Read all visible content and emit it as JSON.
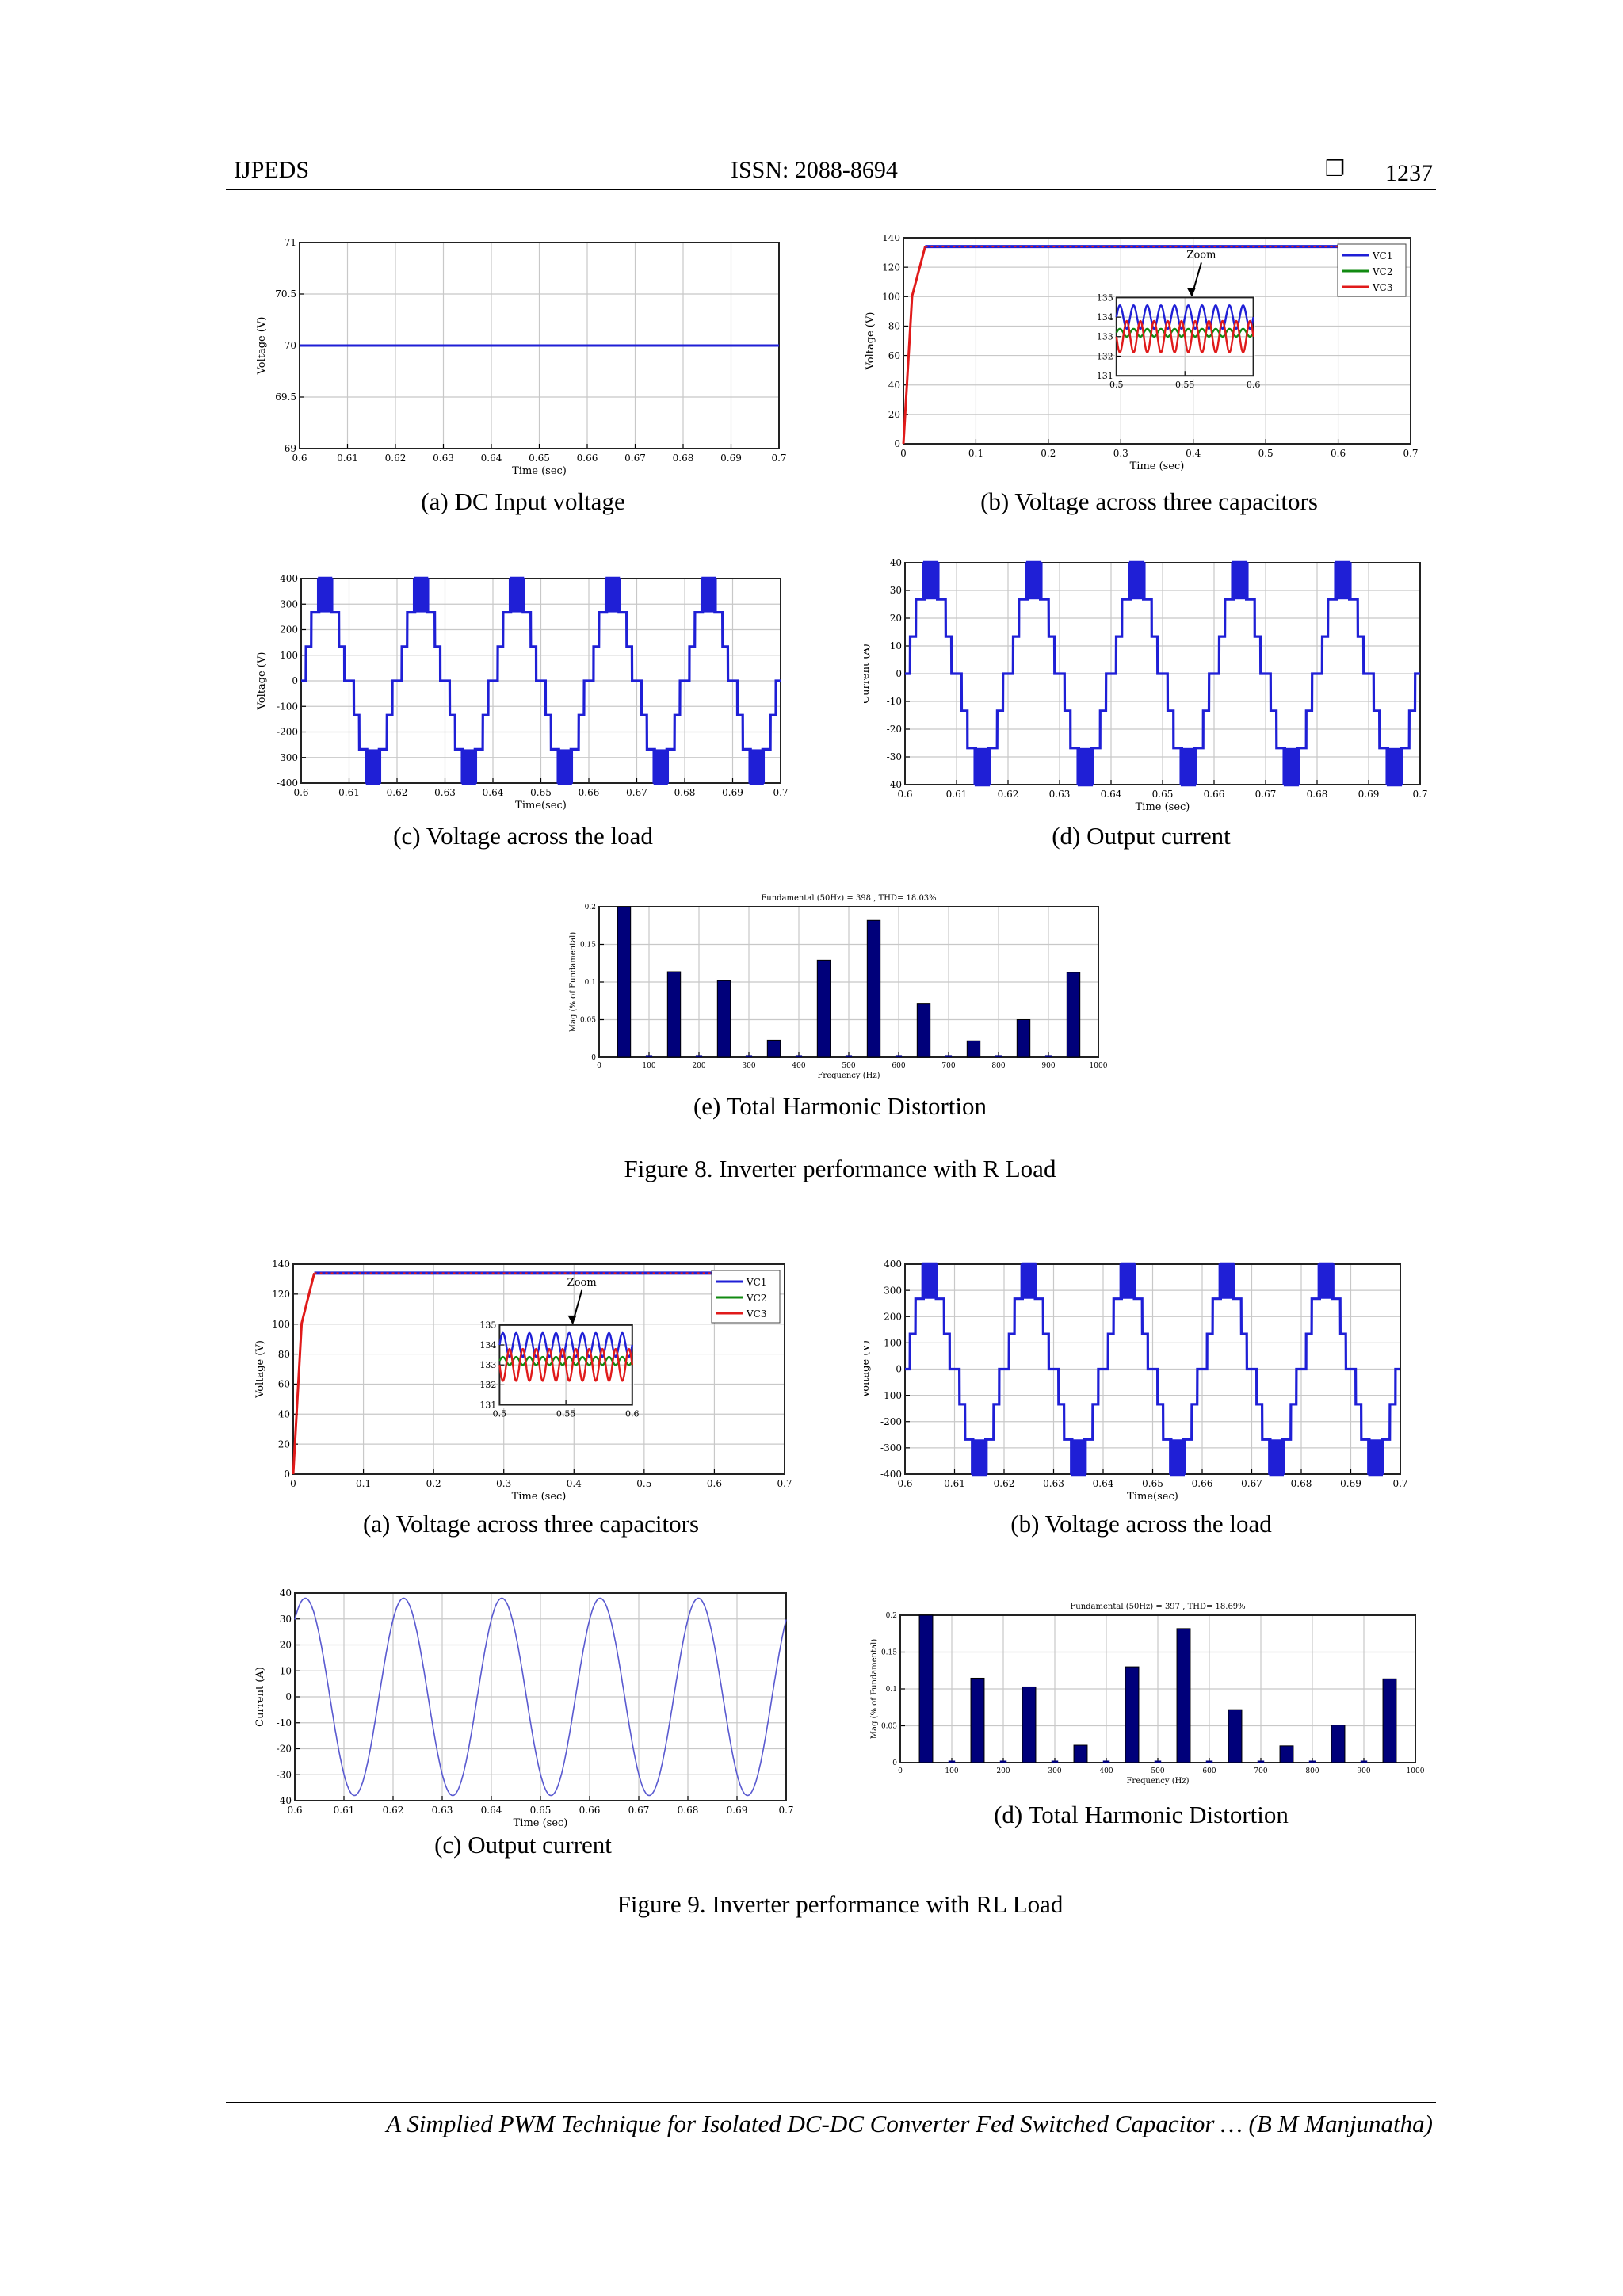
{
  "header": {
    "journal": "IJPEDS",
    "issn": "ISSN: 2088-8694",
    "box_glyph": "❐",
    "page": "1237"
  },
  "footer": {
    "title": "A Simplied PWM Technique for Isolated DC-DC Converter Fed Switched Capacitor … (B M Manjunatha)"
  },
  "figure8": {
    "caption": "Figure 8. Inverter performance with R Load",
    "panels": {
      "a": "(a) DC Input voltage",
      "b": "(b) Voltage across three capacitors",
      "c": "(c) Voltage across the load",
      "d": "(d) Output current",
      "e": "(e) Total Harmonic Distortion"
    }
  },
  "figure9": {
    "caption": "Figure 9. Inverter performance with RL Load",
    "panels": {
      "a": "(a) Voltage across three capacitors",
      "b": "(b) Voltage across the load",
      "c": "(c) Output current",
      "d": "(d) Total Harmonic Distortion"
    }
  },
  "colors": {
    "blue": "#1f1fd6",
    "green": "#118a11",
    "red": "#e01a1a",
    "navy": "#00007a",
    "grid": "#c8c8c8",
    "thin_blue": "#5a5ad0"
  },
  "chart_data": [
    {
      "id": "f8a",
      "type": "line",
      "xlabel": "Time (sec)",
      "ylabel": "Voltage (V)",
      "xlim": [
        0.6,
        0.7
      ],
      "ylim": [
        69,
        71
      ],
      "xticks": [
        "0.6",
        "0.61",
        "0.62",
        "0.63",
        "0.64",
        "0.65",
        "0.66",
        "0.67",
        "0.68",
        "0.69",
        "0.7"
      ],
      "yticks": [
        "69",
        "69.5",
        "70",
        "70.5",
        "71"
      ],
      "series": [
        {
          "x": [
            0.6,
            0.7
          ],
          "y": [
            70,
            70
          ]
        }
      ]
    },
    {
      "id": "f8b",
      "type": "line",
      "xlabel": "Time (sec)",
      "ylabel": "Voltage (V)",
      "xlim": [
        0,
        0.7
      ],
      "ylim": [
        0,
        140
      ],
      "xticks": [
        "0",
        "0.1",
        "0.2",
        "0.3",
        "0.4",
        "0.5",
        "0.6",
        "0.7"
      ],
      "yticks": [
        "0",
        "20",
        "40",
        "60",
        "80",
        "100",
        "120",
        "140"
      ],
      "legend": [
        "VC1",
        "VC2",
        "VC3"
      ],
      "annotation": "Zoom",
      "rise": {
        "t_end": 0.03,
        "steady": 134
      },
      "inset": {
        "xlim": [
          0.5,
          0.6
        ],
        "ylim": [
          131,
          135
        ],
        "xticks": [
          "0.5",
          "0.55",
          "0.6"
        ],
        "yticks": [
          "131",
          "132",
          "133",
          "134",
          "135"
        ],
        "VC1": {
          "mean": 134,
          "ripple": 0.6
        },
        "VC2": {
          "mean": 133.2,
          "ripple": 0.2
        },
        "VC3": {
          "mean": 133,
          "ripple": 0.8
        }
      }
    },
    {
      "id": "f8c",
      "type": "line",
      "xlabel": "Time(sec)",
      "ylabel": "Voltage (V)",
      "xlim": [
        0.6,
        0.7
      ],
      "ylim": [
        -400,
        400
      ],
      "xticks": [
        "0.6",
        "0.61",
        "0.62",
        "0.63",
        "0.64",
        "0.65",
        "0.66",
        "0.67",
        "0.68",
        "0.69",
        "0.7"
      ],
      "yticks": [
        "-400",
        "-300",
        "-200",
        "-100",
        "0",
        "100",
        "200",
        "300",
        "400"
      ],
      "levels": [
        0,
        134,
        268,
        402
      ],
      "frequency_hz": 50
    },
    {
      "id": "f8d",
      "type": "line",
      "xlabel": "Time (sec)",
      "ylabel": "Current (A)",
      "xlim": [
        0.6,
        0.7
      ],
      "ylim": [
        -40,
        40
      ],
      "xticks": [
        "0.6",
        "0.61",
        "0.62",
        "0.63",
        "0.64",
        "0.65",
        "0.66",
        "0.67",
        "0.68",
        "0.69",
        "0.7"
      ],
      "yticks": [
        "-40",
        "-30",
        "-20",
        "-10",
        "0",
        "10",
        "20",
        "30",
        "40"
      ],
      "levels": [
        0,
        13.4,
        26.8,
        40.2
      ],
      "frequency_hz": 50
    },
    {
      "id": "f8e",
      "type": "bar",
      "title": "Fundamental (50Hz) = 398 , THD= 18.03%",
      "xlabel": "Frequency (Hz)",
      "ylabel": "Mag (% of Fundamental)",
      "xlim": [
        0,
        1000
      ],
      "ylim": [
        0,
        0.22
      ],
      "xticks": [
        "0",
        "100",
        "200",
        "300",
        "400",
        "500",
        "600",
        "700",
        "800",
        "900",
        "1000"
      ],
      "yticks": [
        "0",
        "0.05",
        "0.1",
        "0.15",
        "0.2"
      ],
      "x": [
        50,
        150,
        250,
        350,
        450,
        550,
        650,
        750,
        850,
        950
      ],
      "values": [
        0.22,
        0.125,
        0.112,
        0.025,
        0.142,
        0.2,
        0.078,
        0.024,
        0.055,
        0.124
      ]
    },
    {
      "id": "f9a",
      "type": "line",
      "xlabel": "Time (sec)",
      "ylabel": "Voltage (V)",
      "xlim": [
        0,
        0.7
      ],
      "ylim": [
        0,
        140
      ],
      "xticks": [
        "0",
        "0.1",
        "0.2",
        "0.3",
        "0.4",
        "0.5",
        "0.6",
        "0.7"
      ],
      "yticks": [
        "0",
        "20",
        "40",
        "60",
        "80",
        "100",
        "120",
        "140"
      ],
      "legend": [
        "VC1",
        "VC2",
        "VC3"
      ],
      "annotation": "Zoom",
      "rise": {
        "t_end": 0.03,
        "steady": 134
      },
      "inset": {
        "xlim": [
          0.5,
          0.6
        ],
        "ylim": [
          131,
          135
        ],
        "xticks": [
          "0.5",
          "0.55",
          "0.6"
        ],
        "yticks": [
          "131",
          "132",
          "133",
          "134",
          "135"
        ],
        "VC1": {
          "mean": 134,
          "ripple": 0.6
        },
        "VC2": {
          "mean": 133.2,
          "ripple": 0.2
        },
        "VC3": {
          "mean": 133,
          "ripple": 0.8
        }
      }
    },
    {
      "id": "f9b",
      "type": "line",
      "xlabel": "Time(sec)",
      "ylabel": "Voltage (V)",
      "xlim": [
        0.6,
        0.7
      ],
      "ylim": [
        -400,
        400
      ],
      "xticks": [
        "0.6",
        "0.61",
        "0.62",
        "0.63",
        "0.64",
        "0.65",
        "0.66",
        "0.67",
        "0.68",
        "0.69",
        "0.7"
      ],
      "yticks": [
        "-400",
        "-300",
        "-200",
        "-100",
        "0",
        "100",
        "200",
        "300",
        "400"
      ],
      "levels": [
        0,
        134,
        268,
        402
      ],
      "frequency_hz": 50
    },
    {
      "id": "f9c",
      "type": "line",
      "xlabel": "Time (sec)",
      "ylabel": "Current (A)",
      "xlim": [
        0.6,
        0.7
      ],
      "ylim": [
        -40,
        40
      ],
      "xticks": [
        "0.6",
        "0.61",
        "0.62",
        "0.63",
        "0.64",
        "0.65",
        "0.66",
        "0.67",
        "0.68",
        "0.69",
        "0.7"
      ],
      "yticks": [
        "-40",
        "-30",
        "-20",
        "-10",
        "0",
        "10",
        "20",
        "30",
        "40"
      ],
      "amplitude": 38,
      "frequency_hz": 50
    },
    {
      "id": "f9d",
      "type": "bar",
      "title": "Fundamental (50Hz) = 397 , THD= 18.69%",
      "xlabel": "Frequency (Hz)",
      "ylabel": "Mag (% of Fundamental)",
      "xlim": [
        0,
        1000
      ],
      "ylim": [
        0,
        0.22
      ],
      "xticks": [
        "0",
        "100",
        "200",
        "300",
        "400",
        "500",
        "600",
        "700",
        "800",
        "900",
        "1000"
      ],
      "yticks": [
        "0",
        "0.05",
        "0.1",
        "0.15",
        "0.2"
      ],
      "x": [
        50,
        150,
        250,
        350,
        450,
        550,
        650,
        750,
        850,
        950
      ],
      "values": [
        0.22,
        0.126,
        0.113,
        0.026,
        0.143,
        0.2,
        0.079,
        0.025,
        0.056,
        0.125
      ]
    }
  ]
}
